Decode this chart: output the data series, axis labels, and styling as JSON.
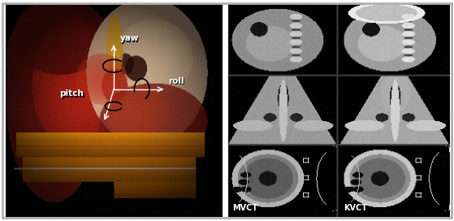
{
  "figure_width": 5.59,
  "figure_height": 2.72,
  "dpi": 100,
  "bg_color": "#ffffff",
  "border_color": "#b0b0b0",
  "left_bg": "#000000",
  "right_bg": "#000000",
  "mvct_label": "MVCT",
  "kvct_label": "KVCT",
  "label_fontsize": 7,
  "yaw_label": "yaw",
  "roll_label": "roll",
  "pitch_label": "pitch",
  "annot_fontsize": 7.5
}
